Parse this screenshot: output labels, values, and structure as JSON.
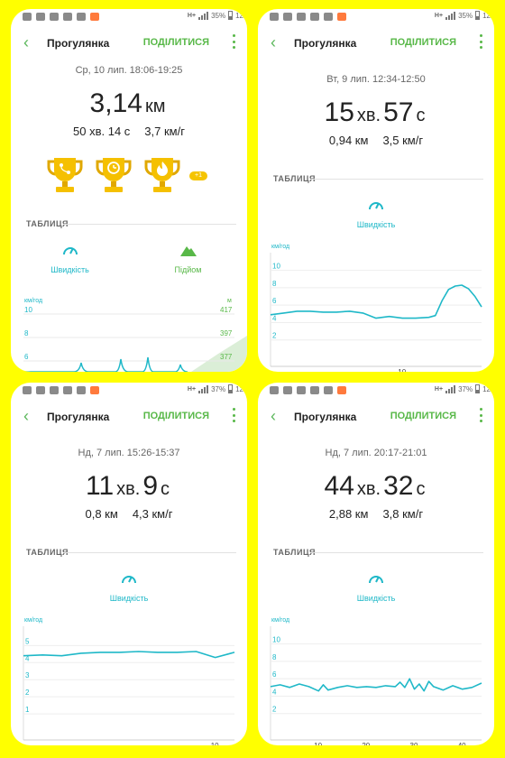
{
  "common": {
    "title": "Прогулянка",
    "share_label": "ПОДІЛИТИСЯ",
    "section_label": "ТАБЛИЦЯ",
    "speed_label": "Швидкість",
    "climb_label": "Підйом",
    "speed_axis_unit": "км/год",
    "alt_axis_unit": "м",
    "colors": {
      "accent": "#58b848",
      "speed_line": "#1fb8c8",
      "background": "#ffff00",
      "trophy": "#f5c000"
    }
  },
  "panels": [
    {
      "status": {
        "network": "H+",
        "battery": "35%",
        "time": "12"
      },
      "date": "Ср, 10 лип. 18:06-19:25",
      "big": {
        "value": "3,14",
        "unit": "км"
      },
      "sub1": "50 хв. 14 с",
      "sub2": "3,7 км/г",
      "trophy_more": "+1",
      "chart_data": {
        "type": "line",
        "y_ticks": [
          "10",
          "8",
          "6"
        ],
        "right_ticks": [
          "417",
          "397",
          "377"
        ],
        "ylim": [
          5,
          11
        ]
      }
    },
    {
      "status": {
        "network": "H+",
        "battery": "35%",
        "time": "12"
      },
      "date": "Вт, 9 лип. 12:34-12:50",
      "big": {
        "num1": "15",
        "unit1": "хв.",
        "num2": "57",
        "unit2": "с"
      },
      "sub1": "0,94 км",
      "sub2": "3,5 км/г",
      "chart_data": {
        "type": "line",
        "y_ticks": [
          "10",
          "8",
          "6",
          "4",
          "2"
        ],
        "x_ticks": [
          "10"
        ],
        "ylim": [
          0,
          11
        ],
        "xlim": [
          0,
          16
        ],
        "x": [
          0,
          1,
          2,
          3,
          4,
          5,
          6,
          7,
          8,
          9,
          10,
          11,
          12,
          12.5,
          13,
          13.5,
          14,
          14.5,
          15,
          15.5,
          16
        ],
        "y": [
          4.9,
          5.1,
          5.3,
          5.3,
          5.2,
          5.2,
          5.3,
          5.1,
          4.5,
          4.7,
          4.5,
          4.5,
          4.6,
          4.8,
          6.5,
          7.8,
          8.2,
          8.3,
          7.9,
          7.0,
          5.8
        ]
      }
    },
    {
      "status": {
        "network": "H+",
        "battery": "37%",
        "time": "12"
      },
      "date": "Нд, 7 лип. 15:26-15:37",
      "big": {
        "num1": "11",
        "unit1": "хв.",
        "num2": "9",
        "unit2": "с"
      },
      "sub1": "0,8 км",
      "sub2": "4,3 км/г",
      "chart_data": {
        "type": "line",
        "y_ticks": [
          "5",
          "4",
          "3",
          "2",
          "1"
        ],
        "x_ticks": [
          "10"
        ],
        "ylim": [
          0,
          5.6
        ],
        "xlim": [
          0,
          11
        ],
        "x": [
          0,
          1,
          2,
          3,
          4,
          5,
          6,
          7,
          8,
          9,
          10,
          11
        ],
        "y": [
          4.4,
          4.45,
          4.4,
          4.55,
          4.6,
          4.6,
          4.65,
          4.6,
          4.6,
          4.65,
          4.3,
          4.6
        ]
      }
    },
    {
      "status": {
        "network": "H+",
        "battery": "37%",
        "time": "12"
      },
      "date": "Нд, 7 лип. 20:17-21:01",
      "big": {
        "num1": "44",
        "unit1": "хв.",
        "num2": "32",
        "unit2": "с"
      },
      "sub1": "2,88 км",
      "sub2": "3,8 км/г",
      "chart_data": {
        "type": "line",
        "y_ticks": [
          "10",
          "8",
          "6",
          "4",
          "2"
        ],
        "x_ticks": [
          "10",
          "20",
          "30",
          "40"
        ],
        "ylim": [
          0,
          11
        ],
        "xlim": [
          0,
          44
        ],
        "x": [
          0,
          2,
          4,
          6,
          8,
          10,
          11,
          12,
          14,
          16,
          18,
          20,
          22,
          24,
          26,
          27,
          28,
          29,
          30,
          31,
          32,
          33,
          34,
          36,
          38,
          40,
          42,
          44
        ],
        "y": [
          5.1,
          5.3,
          5.0,
          5.4,
          5.1,
          4.6,
          5.3,
          4.7,
          5.0,
          5.2,
          5.0,
          5.1,
          5.0,
          5.2,
          5.1,
          5.6,
          5.0,
          6.0,
          4.8,
          5.4,
          4.6,
          5.7,
          5.1,
          4.7,
          5.2,
          4.8,
          5.0,
          5.5
        ]
      }
    }
  ]
}
